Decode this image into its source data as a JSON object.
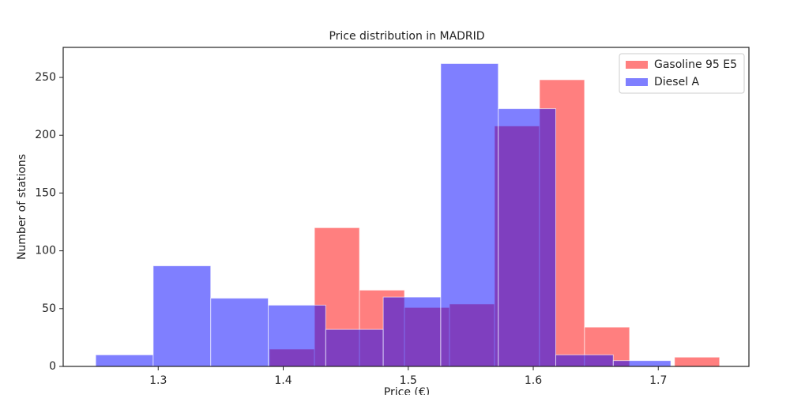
{
  "chart_data": {
    "type": "histogram",
    "title": "Price distribution in MADRID",
    "xlabel": "Price (€)",
    "ylabel": "Number of stations",
    "series": [
      {
        "name": "Gasoline 95 E5",
        "color": "#ff0000",
        "bins": [
          1.389,
          1.425,
          1.461,
          1.497,
          1.533,
          1.569,
          1.605,
          1.641,
          1.677,
          1.713,
          1.749
        ],
        "values": [
          15,
          120,
          66,
          51,
          54,
          208,
          248,
          34,
          0,
          8
        ]
      },
      {
        "name": "Diesel A",
        "color": "#0000ff",
        "bins": [
          1.25,
          1.296,
          1.342,
          1.388,
          1.434,
          1.48,
          1.526,
          1.572,
          1.618,
          1.664,
          1.71
        ],
        "values": [
          10,
          87,
          59,
          53,
          32,
          60,
          262,
          223,
          10,
          5
        ]
      }
    ],
    "alpha": 0.5,
    "xlim": [
      1.224,
      1.7725
    ],
    "xticks": [
      1.3,
      1.4,
      1.5,
      1.6,
      1.7
    ],
    "ylim": [
      0,
      276
    ],
    "yticks": [
      0,
      50,
      100,
      150,
      200,
      250
    ],
    "legend": "upper right"
  }
}
